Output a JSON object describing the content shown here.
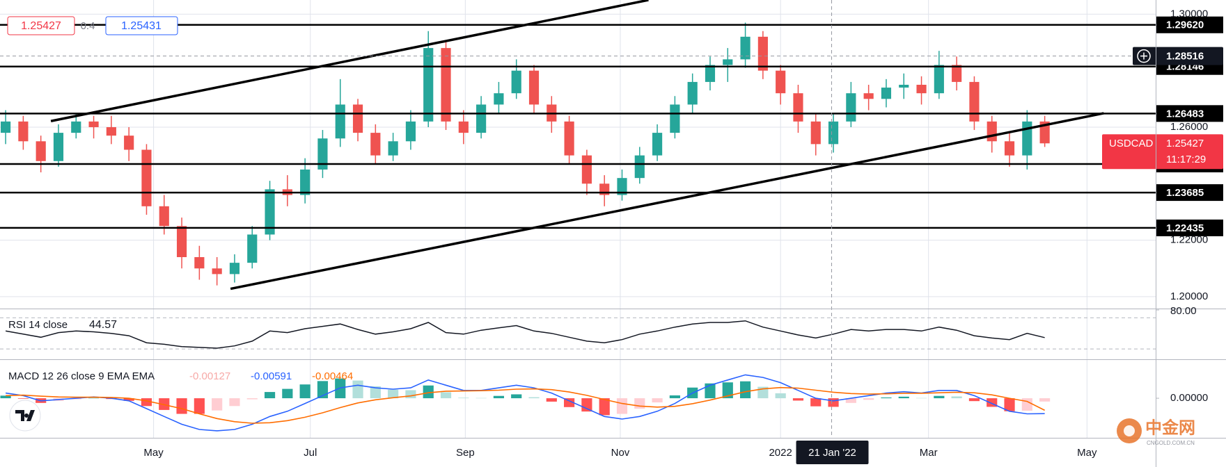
{
  "chart_data": {
    "type": "candlestick",
    "up_color": "#26a69a",
    "down_color": "#ef5350",
    "open": [
      1.258,
      1.262,
      1.255,
      1.248,
      1.258,
      1.262,
      1.26,
      1.257,
      1.252,
      1.232,
      1.225,
      1.214,
      1.21,
      1.208,
      1.212,
      1.222,
      1.238,
      1.236,
      1.245,
      1.256,
      1.268,
      1.258,
      1.25,
      1.255,
      1.262,
      1.288,
      1.262,
      1.258,
      1.268,
      1.272,
      1.28,
      1.268,
      1.262,
      1.25,
      1.24,
      1.236,
      1.242,
      1.25,
      1.258,
      1.268,
      1.276,
      1.282,
      1.284,
      1.292,
      1.28,
      1.272,
      1.262,
      1.254,
      1.262,
      1.272,
      1.27,
      1.274,
      1.275,
      1.272,
      1.282,
      1.276,
      1.262,
      1.255,
      1.25,
      1.262
    ],
    "high": [
      1.266,
      1.264,
      1.257,
      1.261,
      1.265,
      1.264,
      1.264,
      1.26,
      1.254,
      1.236,
      1.228,
      1.218,
      1.214,
      1.215,
      1.225,
      1.241,
      1.243,
      1.249,
      1.259,
      1.277,
      1.27,
      1.261,
      1.258,
      1.266,
      1.294,
      1.29,
      1.266,
      1.271,
      1.276,
      1.284,
      1.282,
      1.271,
      1.264,
      1.252,
      1.243,
      1.245,
      1.253,
      1.261,
      1.271,
      1.279,
      1.285,
      1.288,
      1.297,
      1.294,
      1.282,
      1.275,
      1.265,
      1.265,
      1.276,
      1.275,
      1.277,
      1.279,
      1.278,
      1.287,
      1.285,
      1.278,
      1.264,
      1.258,
      1.266,
      1.264
    ],
    "low": [
      1.254,
      1.252,
      1.244,
      1.246,
      1.256,
      1.256,
      1.254,
      1.248,
      1.229,
      1.222,
      1.21,
      1.206,
      1.204,
      1.205,
      1.21,
      1.22,
      1.232,
      1.233,
      1.242,
      1.253,
      1.255,
      1.247,
      1.248,
      1.252,
      1.26,
      1.259,
      1.254,
      1.256,
      1.265,
      1.27,
      1.265,
      1.258,
      1.247,
      1.236,
      1.232,
      1.234,
      1.24,
      1.248,
      1.256,
      1.265,
      1.273,
      1.276,
      1.281,
      1.277,
      1.268,
      1.258,
      1.25,
      1.251,
      1.26,
      1.266,
      1.267,
      1.27,
      1.268,
      1.27,
      1.273,
      1.259,
      1.251,
      1.246,
      1.245,
      1.253
    ],
    "close": [
      1.262,
      1.255,
      1.248,
      1.258,
      1.262,
      1.26,
      1.257,
      1.252,
      1.232,
      1.225,
      1.214,
      1.21,
      1.208,
      1.212,
      1.222,
      1.238,
      1.236,
      1.245,
      1.256,
      1.268,
      1.258,
      1.25,
      1.255,
      1.262,
      1.288,
      1.262,
      1.258,
      1.268,
      1.272,
      1.28,
      1.268,
      1.262,
      1.25,
      1.24,
      1.236,
      1.242,
      1.25,
      1.258,
      1.268,
      1.276,
      1.282,
      1.284,
      1.292,
      1.28,
      1.272,
      1.262,
      1.254,
      1.262,
      1.272,
      1.27,
      1.274,
      1.275,
      1.272,
      1.282,
      1.276,
      1.262,
      1.255,
      1.25,
      1.262,
      1.25427
    ],
    "xlim": [
      -0.32,
      65.3
    ],
    "xticks": [
      {
        "value": 8.4,
        "label": "May"
      },
      {
        "value": 17.3,
        "label": "Jul"
      },
      {
        "value": 26.1,
        "label": "Sep"
      },
      {
        "value": 34.9,
        "label": "Nov"
      },
      {
        "value": 44.0,
        "label": "2022"
      },
      {
        "value": 52.4,
        "label": "Mar"
      },
      {
        "value": 61.4,
        "label": "May"
      }
    ],
    "ylim": [
      1.1958,
      1.305
    ],
    "yticks": [
      {
        "value": 1.2,
        "label": "1.20000"
      },
      {
        "value": 1.22,
        "label": "1.22000"
      },
      {
        "value": 1.26,
        "label": "1.26000"
      },
      {
        "value": 1.3,
        "label": "1.30000"
      }
    ],
    "grid": true,
    "levels": [
      {
        "value": 1.2962,
        "label": "1.29620"
      },
      1.28146,
      1.26483,
      1.24696,
      1.23685,
      1.22435
    ],
    "trendlines": [
      {
        "x": [
          2.57,
          36.5
        ],
        "y": [
          1.26215,
          1.305
        ]
      },
      {
        "x": [
          12.77,
          62.35
        ],
        "y": [
          1.2028,
          1.26492
        ]
      }
    ],
    "crosshair": {
      "x": 46.9,
      "label": "21 Jan '22",
      "price": 1.28516
    },
    "price_marker": {
      "symbol": "USDCAD",
      "value": 1.25427,
      "countdown": "11:17:29",
      "color": "#f23645"
    },
    "quote": {
      "bid": 1.25427,
      "spread": 0.4,
      "ask": 1.25431
    },
    "rsi": {
      "label": "RSI 14 close",
      "color": "#131722",
      "values": [
        53,
        49,
        45,
        51,
        53,
        52,
        50,
        47,
        38,
        36,
        33,
        32,
        31,
        34,
        40,
        53,
        51,
        56,
        59,
        62,
        55,
        49,
        52,
        56,
        64,
        51,
        49,
        54,
        57,
        60,
        53,
        50,
        45,
        40,
        38,
        42,
        49,
        53,
        58,
        62,
        64,
        64,
        66,
        58,
        53,
        48,
        44,
        49,
        55,
        53,
        55,
        55,
        53,
        58,
        54,
        47,
        44,
        42,
        50,
        44.57
      ],
      "ylim": [
        16.8,
        80.9
      ],
      "yticks": [
        {
          "value": 80,
          "label": "80.00"
        }
      ],
      "bands": [
        70,
        30
      ]
    },
    "macd": {
      "label": "MACD 12 26 close 9 EMA EMA",
      "hist_colors": [
        "#26a69a",
        "#b2dfdb",
        "#ff5252",
        "#ffcdd2"
      ],
      "hist_label_color": "#f7a9a7",
      "macd_color": "#2962ff",
      "signal_color": "#ff6d00",
      "histogram": [
        0.001,
        -0.0002,
        -0.0018,
        -0.001,
        -0.0004,
        0.0001,
        -0.0003,
        -0.001,
        -0.003,
        -0.0045,
        -0.006,
        -0.006,
        -0.0047,
        -0.003,
        -0.0004,
        0.0024,
        0.0036,
        0.0053,
        0.0066,
        0.0076,
        0.0068,
        0.0046,
        0.0033,
        0.0031,
        0.0049,
        0.0023,
        0.0002,
        0.0001,
        0.0009,
        0.0015,
        0.0004,
        -0.0013,
        -0.0034,
        -0.0051,
        -0.0065,
        -0.006,
        -0.004,
        -0.0016,
        0.0011,
        0.0041,
        0.0057,
        0.0061,
        0.0065,
        0.0044,
        0.0019,
        -0.0009,
        -0.0031,
        -0.0033,
        -0.0018,
        -0.0006,
        0.0003,
        0.0006,
        0.0001,
        0.0009,
        0.0007,
        -0.0011,
        -0.0033,
        -0.005,
        -0.0048,
        -0.00127
      ],
      "macd": [
        0.002,
        0.001,
        -0.001,
        -0.0005,
        0.0,
        0.0005,
        0.0,
        -0.001,
        -0.004,
        -0.007,
        -0.01,
        -0.012,
        -0.0125,
        -0.012,
        -0.01,
        -0.007,
        -0.005,
        -0.002,
        0.001,
        0.004,
        0.005,
        0.004,
        0.0035,
        0.004,
        0.007,
        0.005,
        0.003,
        0.003,
        0.004,
        0.005,
        0.004,
        0.002,
        -0.001,
        -0.004,
        -0.007,
        -0.008,
        -0.007,
        -0.005,
        -0.002,
        0.002,
        0.005,
        0.007,
        0.009,
        0.008,
        0.006,
        0.003,
        0.0,
        -0.001,
        0.0,
        0.001,
        0.002,
        0.0025,
        0.002,
        0.003,
        0.003,
        0.001,
        -0.002,
        -0.005,
        -0.006,
        -0.00591
      ],
      "signal": [
        0.001,
        0.0012,
        0.0008,
        0.0005,
        0.0004,
        0.0004,
        0.0003,
        0.0,
        -0.001,
        -0.0025,
        -0.004,
        -0.006,
        -0.0078,
        -0.009,
        -0.0096,
        -0.0094,
        -0.0086,
        -0.0073,
        -0.0056,
        -0.0036,
        -0.0018,
        -0.0006,
        0.0002,
        0.0009,
        0.0021,
        0.0027,
        0.0028,
        0.0029,
        0.0031,
        0.0035,
        0.0036,
        0.0033,
        0.0024,
        0.0011,
        -0.0005,
        -0.002,
        -0.003,
        -0.0034,
        -0.0031,
        -0.0021,
        -0.0007,
        0.0009,
        0.0025,
        0.0036,
        0.0041,
        0.0039,
        0.0031,
        0.0023,
        0.0018,
        0.0016,
        0.0017,
        0.0019,
        0.0019,
        0.0021,
        0.0023,
        0.0021,
        0.0013,
        0.0,
        -0.0012,
        -0.00464
      ],
      "ylim": [
        -0.0152,
        0.0147
      ],
      "yticks": [
        {
          "value": 0,
          "label": "0.00000"
        }
      ]
    },
    "watermark": {
      "name": "中金网",
      "site": "CNGOLD.COM.CN"
    }
  }
}
